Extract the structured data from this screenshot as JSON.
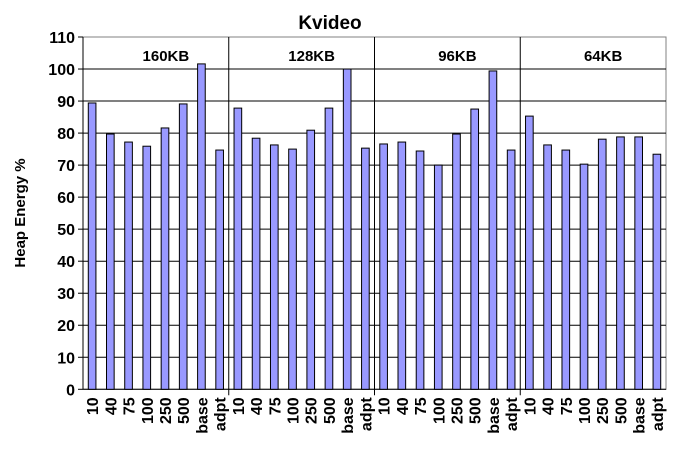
{
  "chart_data": {
    "type": "bar",
    "title": "Kvideo",
    "ylabel": "Heap Energy %",
    "xlabel": "",
    "ylim": [
      0,
      110
    ],
    "yticks": [
      0,
      10,
      20,
      30,
      40,
      50,
      60,
      70,
      80,
      90,
      100,
      110
    ],
    "grid": true,
    "bar_color": "#9999ff",
    "categories": [
      "10",
      "40",
      "75",
      "100",
      "250",
      "500",
      "base",
      "adpt"
    ],
    "groups": [
      {
        "name": "160KB",
        "values": [
          89.4,
          79.7,
          77.2,
          75.9,
          81.6,
          89.1,
          101.6,
          74.7
        ]
      },
      {
        "name": "128KB",
        "values": [
          87.8,
          78.4,
          76.3,
          75.0,
          80.9,
          87.8,
          100.0,
          75.3
        ]
      },
      {
        "name": "96KB",
        "values": [
          76.6,
          77.2,
          74.4,
          70.0,
          79.7,
          87.5,
          99.4,
          74.7
        ]
      },
      {
        "name": "64KB",
        "values": [
          85.3,
          76.3,
          74.7,
          70.3,
          78.1,
          78.8,
          78.8,
          73.4
        ]
      }
    ]
  }
}
